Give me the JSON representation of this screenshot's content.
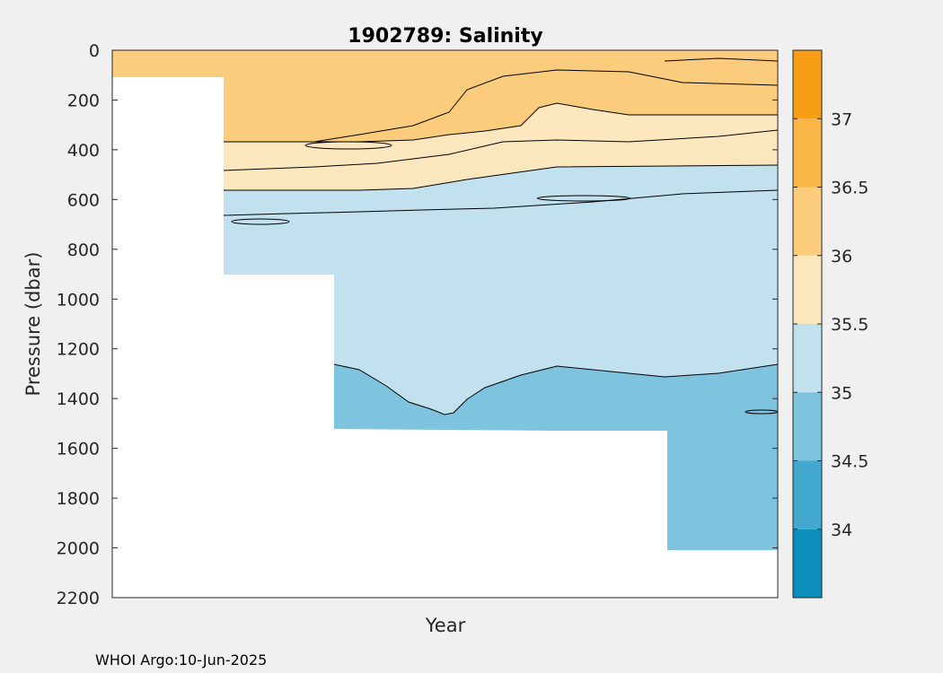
{
  "chart_data": {
    "type": "heatmap",
    "title": "1902789:  Salinity",
    "xlabel": "Year",
    "ylabel": "Pressure (dbar)",
    "y_reversed": true,
    "ylim": [
      0,
      2200
    ],
    "yticks": [
      0,
      200,
      400,
      600,
      800,
      1000,
      1200,
      1400,
      1600,
      1800,
      2000,
      2200
    ],
    "colorbar": {
      "range": [
        33.5,
        37.5
      ],
      "ticks": [
        34,
        34.5,
        35,
        35.5,
        36,
        36.5,
        37
      ],
      "levels": [
        {
          "min": 33.5,
          "max": 34.0,
          "color": "#0c8fbb"
        },
        {
          "min": 34.0,
          "max": 34.5,
          "color": "#42a8ce"
        },
        {
          "min": 34.5,
          "max": 35.0,
          "color": "#7fc4de"
        },
        {
          "min": 35.0,
          "max": 35.5,
          "color": "#c0e1ed"
        },
        {
          "min": 35.5,
          "max": 36.0,
          "color": "#fce6be"
        },
        {
          "min": 36.0,
          "max": 36.5,
          "color": "#fbcc7c"
        },
        {
          "min": 36.5,
          "max": 37.0,
          "color": "#f9b545"
        },
        {
          "min": 37.0,
          "max": 37.5,
          "color": "#f79d16"
        }
      ]
    },
    "profile_max_pressure": [
      {
        "segment": 1,
        "max_pressure": 110
      },
      {
        "segment": 2,
        "max_pressure": 900
      },
      {
        "segment": 3,
        "max_pressure": 1530
      },
      {
        "segment": 4,
        "max_pressure": 1530
      },
      {
        "segment": 5,
        "max_pressure": 2010
      }
    ],
    "isohalines_pressure": [
      {
        "salinity": 36.0,
        "pressure_range": [
          200,
          370
        ]
      },
      {
        "salinity": 35.5,
        "pressure_range": [
          460,
          560
        ]
      },
      {
        "salinity": 35.0,
        "pressure_range": [
          1260,
          1470
        ]
      }
    ]
  },
  "footer": {
    "text": "WHOI Argo:10-Jun-2025"
  }
}
